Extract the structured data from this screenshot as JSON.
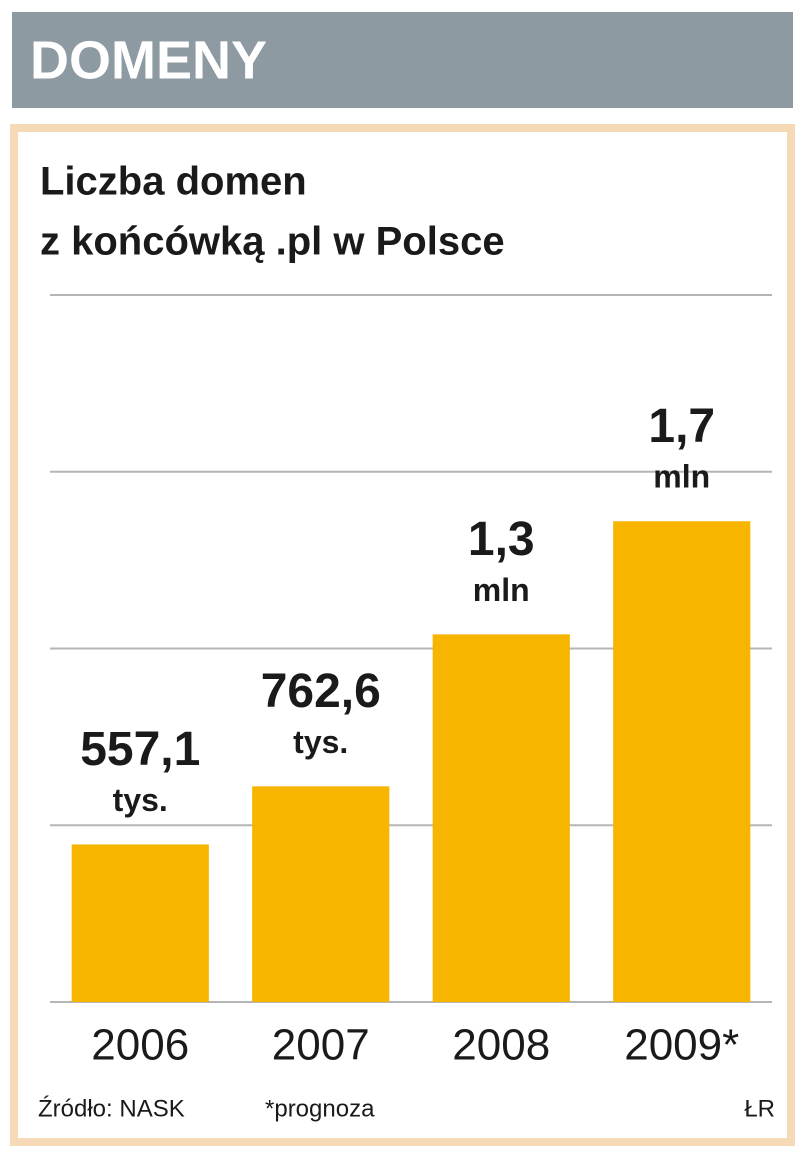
{
  "header": "DOMENY",
  "chart_data": {
    "type": "bar",
    "title": [
      "Liczba domen",
      "z końcówką .pl w Polsce"
    ],
    "categories": [
      "2006",
      "2007",
      "2008",
      "2009*"
    ],
    "values": [
      557.1,
      762.6,
      1300,
      1700
    ],
    "value_labels": [
      [
        "557,1",
        "tys."
      ],
      [
        "762,6",
        "tys."
      ],
      [
        "1,3",
        "mln"
      ],
      [
        "1,7",
        "mln"
      ]
    ],
    "color": "#f7b500",
    "ylim": [
      0,
      2500
    ],
    "yticks": [
      0,
      625,
      1250,
      1875,
      2500
    ],
    "grid": true
  },
  "footer": {
    "source": "Źródło: NASK",
    "note": "*prognoza",
    "author": "ŁR"
  }
}
